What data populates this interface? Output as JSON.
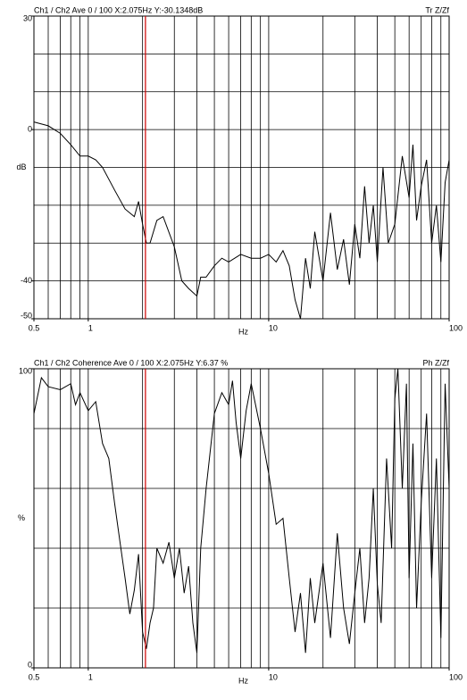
{
  "chart_data": [
    {
      "type": "line",
      "title": "Ch1 / Ch2  Ave 0 / 100  X:2.075Hz  Y:-30.1348dB",
      "mode_label": "Tr Z/Zf",
      "ylabel": "dB",
      "xlabel": "Hz",
      "xscale": "log",
      "xlim": [
        0.5,
        100
      ],
      "ylim": [
        -50,
        30
      ],
      "xticks": [
        0.5,
        1,
        10,
        100
      ],
      "yticks": [
        30,
        0,
        -40,
        -50
      ],
      "xgrid": [
        0.6,
        0.7,
        0.8,
        0.9,
        1,
        2,
        3,
        4,
        5,
        6,
        7,
        8,
        9,
        10,
        20,
        30,
        40,
        50,
        60,
        70,
        80,
        90
      ],
      "ygrid": [
        20,
        10,
        0,
        -10,
        -20,
        -30,
        -40
      ],
      "cursor_x": 2.075,
      "cursor_color": "#cc0000",
      "color": "#000000",
      "x": [
        0.5,
        0.6,
        0.7,
        0.8,
        0.9,
        1.0,
        1.1,
        1.2,
        1.4,
        1.6,
        1.8,
        1.9,
        2.0,
        2.1,
        2.2,
        2.4,
        2.6,
        3.0,
        3.3,
        3.6,
        4.0,
        4.2,
        4.5,
        5,
        5.5,
        6,
        7,
        8,
        9,
        10,
        11,
        12,
        13,
        14,
        15,
        16,
        17,
        18,
        20,
        22,
        24,
        26,
        28,
        30,
        32,
        34,
        36,
        38,
        40,
        43,
        46,
        50,
        55,
        60,
        63,
        66,
        70,
        75,
        80,
        85,
        90,
        95,
        100
      ],
      "values": [
        2,
        1,
        -1,
        -4,
        -7,
        -7,
        -8,
        -10,
        -16,
        -21,
        -23,
        -19,
        -25,
        -30,
        -30,
        -24,
        -23,
        -31,
        -40,
        -42,
        -44,
        -39,
        -39,
        -36,
        -34,
        -35,
        -33,
        -34,
        -34,
        -33,
        -35,
        -32,
        -36,
        -45,
        -50,
        -34,
        -42,
        -27,
        -40,
        -22,
        -37,
        -29,
        -41,
        -25,
        -34,
        -15,
        -30,
        -20,
        -35,
        -10,
        -30,
        -25,
        -7,
        -18,
        -4,
        -24,
        -15,
        -8,
        -30,
        -20,
        -35,
        -14,
        -8
      ]
    },
    {
      "type": "line",
      "title": "Ch1 / Ch2  Coherence Ave 0 / 100  X:2.075Hz  Y:6.37 %",
      "mode_label": "Ph Z/Zf",
      "ylabel": "%",
      "xlabel": "Hz",
      "xscale": "log",
      "xlim": [
        0.5,
        100
      ],
      "ylim": [
        0,
        100
      ],
      "xticks": [
        0.5,
        1,
        10,
        100
      ],
      "yticks": [
        100,
        0
      ],
      "xgrid": [
        0.6,
        0.7,
        0.8,
        0.9,
        1,
        2,
        3,
        4,
        5,
        6,
        7,
        8,
        9,
        10,
        20,
        30,
        40,
        50,
        60,
        70,
        80,
        90
      ],
      "ygrid": [
        80,
        60,
        40,
        20
      ],
      "cursor_x": 2.075,
      "cursor_color": "#cc0000",
      "color": "#000000",
      "x": [
        0.5,
        0.55,
        0.6,
        0.7,
        0.8,
        0.85,
        0.9,
        1.0,
        1.1,
        1.2,
        1.3,
        1.4,
        1.5,
        1.6,
        1.7,
        1.8,
        1.9,
        2.0,
        2.1,
        2.2,
        2.3,
        2.4,
        2.6,
        2.8,
        3.0,
        3.2,
        3.4,
        3.6,
        3.8,
        4.0,
        4.2,
        4.5,
        5,
        5.5,
        6,
        6.3,
        6.6,
        7,
        7.5,
        8,
        9,
        10,
        11,
        12,
        13,
        14,
        15,
        16,
        17,
        18,
        20,
        22,
        24,
        26,
        28,
        30,
        32,
        34,
        36,
        38,
        40,
        42,
        45,
        48,
        50,
        52,
        55,
        58,
        60,
        63,
        66,
        70,
        75,
        80,
        85,
        90,
        95,
        100
      ],
      "values": [
        85,
        97,
        94,
        93,
        95,
        88,
        92,
        86,
        89,
        75,
        70,
        55,
        42,
        30,
        18,
        26,
        38,
        12,
        6.37,
        15,
        20,
        40,
        35,
        42,
        30,
        40,
        25,
        34,
        15,
        5,
        40,
        60,
        85,
        92,
        88,
        96,
        82,
        70,
        86,
        95,
        80,
        65,
        48,
        50,
        30,
        12,
        25,
        5,
        30,
        15,
        35,
        10,
        45,
        20,
        8,
        25,
        40,
        15,
        30,
        60,
        28,
        15,
        70,
        40,
        90,
        100,
        60,
        95,
        30,
        75,
        20,
        55,
        85,
        30,
        70,
        10,
        95,
        60
      ]
    }
  ]
}
